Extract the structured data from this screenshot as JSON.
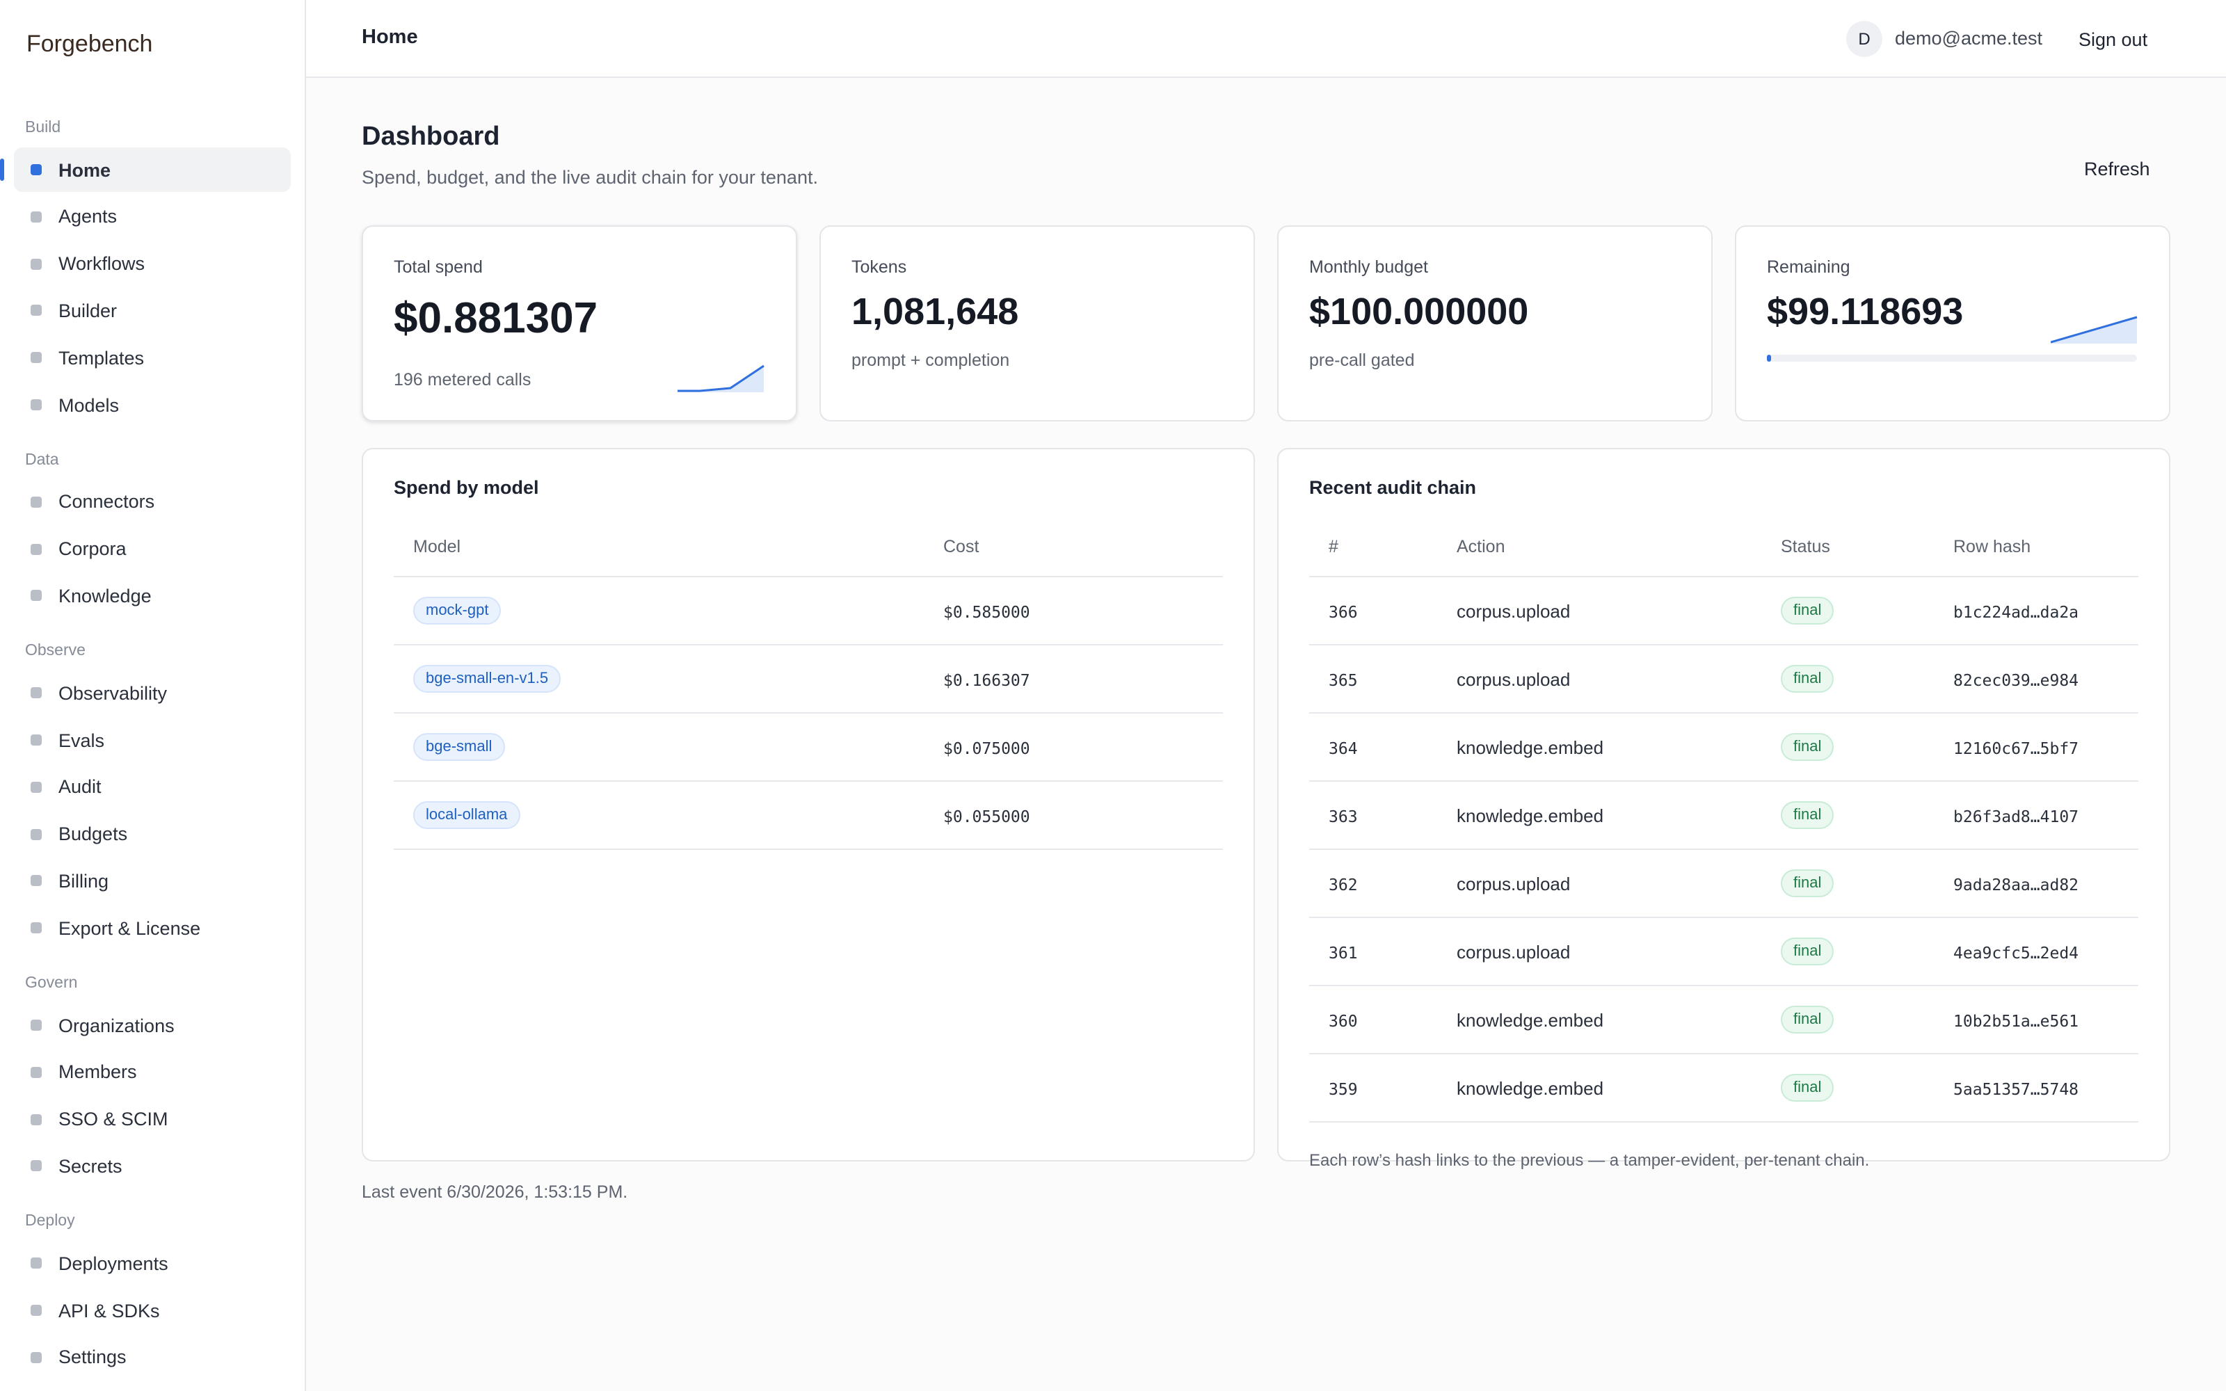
{
  "brand": "Forgebench",
  "nav": [
    {
      "title": "Build",
      "items": [
        "Home",
        "Agents",
        "Workflows",
        "Builder",
        "Templates",
        "Models"
      ]
    },
    {
      "title": "Data",
      "items": [
        "Connectors",
        "Corpora",
        "Knowledge"
      ]
    },
    {
      "title": "Observe",
      "items": [
        "Observability",
        "Evals",
        "Audit",
        "Budgets",
        "Billing",
        "Export & License"
      ]
    },
    {
      "title": "Govern",
      "items": [
        "Organizations",
        "Members",
        "SSO & SCIM",
        "Secrets"
      ]
    },
    {
      "title": "Deploy",
      "items": [
        "Deployments",
        "API & SDKs",
        "Settings"
      ]
    }
  ],
  "header": {
    "title": "Home",
    "avatar": "D",
    "email": "demo@acme.test",
    "signout": "Sign out"
  },
  "page": {
    "title": "Dashboard",
    "subtitle": "Spend, budget, and the live audit chain for your tenant.",
    "refresh": "Refresh"
  },
  "stats": [
    {
      "label": "Total spend",
      "value": "$0.881307",
      "note": "196 metered calls"
    },
    {
      "label": "Tokens",
      "value": "1,081,648",
      "note": "prompt + completion"
    },
    {
      "label": "Monthly budget",
      "value": "$100.000000",
      "note": "pre-call gated"
    },
    {
      "label": "Remaining",
      "value": "$99.118693"
    }
  ],
  "spend": {
    "title": "Spend by model",
    "columns": [
      "Model",
      "Cost"
    ],
    "rows": [
      [
        "mock-gpt",
        "$0.585000"
      ],
      [
        "bge-small-en-v1.5",
        "$0.166307"
      ],
      [
        "bge-small",
        "$0.075000"
      ],
      [
        "local-ollama",
        "$0.055000"
      ]
    ]
  },
  "audit": {
    "title": "Recent audit chain",
    "columns": [
      "#",
      "Action",
      "Status",
      "Row hash"
    ],
    "rows": [
      [
        "366",
        "corpus.upload",
        "final",
        "b1c224ad…da2a"
      ],
      [
        "365",
        "corpus.upload",
        "final",
        "82cec039…e984"
      ],
      [
        "364",
        "knowledge.embed",
        "final",
        "12160c67…5bf7"
      ],
      [
        "363",
        "knowledge.embed",
        "final",
        "b26f3ad8…4107"
      ],
      [
        "362",
        "corpus.upload",
        "final",
        "9ada28aa…ad82"
      ],
      [
        "361",
        "corpus.upload",
        "final",
        "4ea9cfc5…2ed4"
      ],
      [
        "360",
        "knowledge.embed",
        "final",
        "10b2b51a…e561"
      ],
      [
        "359",
        "knowledge.embed",
        "final",
        "5aa51357…5748"
      ]
    ],
    "footnote": "Each row’s hash links to the previous — a tamper-evident, per-tenant chain."
  },
  "footer": "Last event 6/30/2026, 1:53:15 PM."
}
